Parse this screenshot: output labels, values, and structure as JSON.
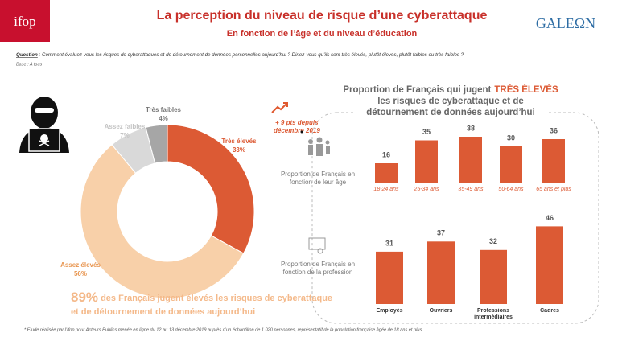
{
  "header": {
    "logo": "ifop",
    "title": "La perception du niveau de risque d’une cyberattaque",
    "subtitle": "En fonction de l’âge et du niveau d’éducation",
    "brand": "GALEΩN"
  },
  "question": {
    "label": "Question",
    "text": " : Comment évaluez-vous les risques de cyberattaques et de détournement de données personnelles aujourd’hui ? Diriez-vous qu’ils sont très élevés, plutôt élevés, plutôt faibles ou très faibles ?"
  },
  "base": "Base : A tous",
  "annotation": [
    "+ 9 pts depuis",
    "décembre 2019"
  ],
  "conclusion": {
    "highlight": "89%",
    "lines": [
      " des Français jugent élevés les risques de cyberattaque",
      "et de détournement de données aujourd’hui"
    ]
  },
  "footnote": "* Etude réalisée par l’Ifop pour Acteurs Publics menée en ligne du 12 au 13 décembre 2019 auprès d’un échantillon de 1 020 personnes, représentatif de la population française âgée de 18 ans et plus",
  "chart_data": [
    {
      "type": "pie",
      "donut": true,
      "categories": [
        "Très élevés",
        "Assez élevés",
        "Assez faibles",
        "Très faibles"
      ],
      "values": [
        33,
        56,
        7,
        4
      ],
      "value_labels": [
        "33%",
        "56%",
        "7%",
        "4%"
      ],
      "colors": [
        "#dc5a34",
        "#f8d0a9",
        "#d9d9d9",
        "#a6a6a6"
      ]
    },
    {
      "type": "bar",
      "title": [
        "Proportion de Français qui jugent",
        "TRÈS ÉLEVÉS",
        "les risques de cyberattaque et de",
        "détournement de données aujourd’hui"
      ],
      "label": "Proportion de Français en fonction de leur âge",
      "categories": [
        "18-24 ans",
        "25-34 ans",
        "35-49 ans",
        "50-64 ans",
        "65 ans et plus"
      ],
      "values": [
        16,
        35,
        38,
        30,
        36
      ],
      "color": "#dc5a34"
    },
    {
      "type": "bar",
      "label": "Proportion de Français en fonction de la profession",
      "categories": [
        "Employés",
        "Ouvriers",
        "Professions intermédiaires",
        "Cadres"
      ],
      "values": [
        31,
        37,
        32,
        46
      ],
      "color": "#dc5a34"
    }
  ]
}
